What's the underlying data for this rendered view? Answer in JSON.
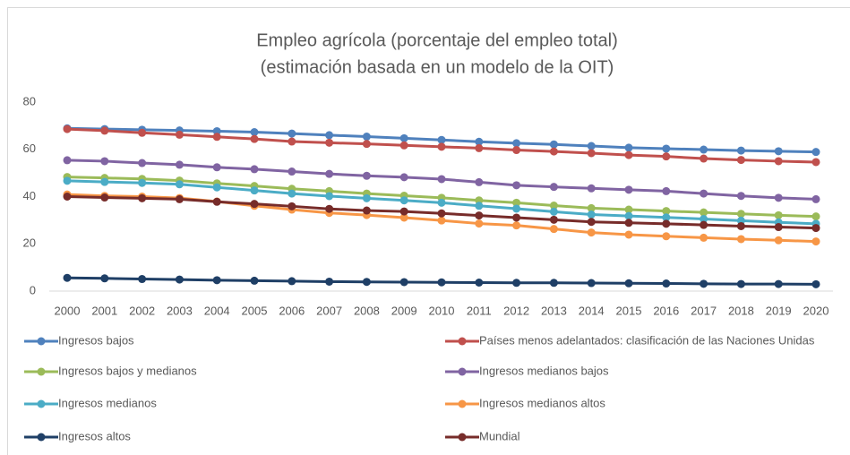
{
  "chart_data": {
    "type": "line",
    "title": "Empleo agrícola (porcentaje del empleo total)",
    "subtitle": "(estimación basada en un modelo de la OIT)",
    "categories": [
      "2000",
      "2001",
      "2002",
      "2003",
      "2004",
      "2005",
      "2006",
      "2007",
      "2008",
      "2009",
      "2010",
      "2011",
      "2012",
      "2013",
      "2014",
      "2015",
      "2016",
      "2017",
      "2018",
      "2019",
      "2020"
    ],
    "ylim": [
      0,
      80
    ],
    "yticks": [
      0,
      20,
      40,
      60,
      80
    ],
    "grid": false,
    "legend": "bottom",
    "series": [
      {
        "name": "Ingresos bajos",
        "color": "#4f81bd",
        "values": [
          68.9,
          68.6,
          68.3,
          68.0,
          67.7,
          67.3,
          66.7,
          66.0,
          65.4,
          64.7,
          64.0,
          63.2,
          62.6,
          62.1,
          61.4,
          60.7,
          60.3,
          59.9,
          59.5,
          59.2,
          58.9
        ]
      },
      {
        "name": "Países menos adelantados: clasificación de las Naciones Unidas",
        "color": "#c0504d",
        "values": [
          68.6,
          67.9,
          67.0,
          66.2,
          65.3,
          64.4,
          63.3,
          62.8,
          62.3,
          61.7,
          61.1,
          60.5,
          59.7,
          59.1,
          58.4,
          57.6,
          57.0,
          56.1,
          55.5,
          55.0,
          54.6
        ]
      },
      {
        "name": "Ingresos bajos y medianos",
        "color": "#9bbb59",
        "values": [
          48.3,
          47.9,
          47.5,
          46.8,
          45.6,
          44.5,
          43.3,
          42.3,
          41.3,
          40.4,
          39.5,
          38.4,
          37.4,
          36.2,
          35.1,
          34.5,
          33.9,
          33.3,
          32.7,
          32.1,
          31.6
        ]
      },
      {
        "name": "Ingresos medianos bajos",
        "color": "#8064a2",
        "values": [
          55.4,
          55.0,
          54.2,
          53.5,
          52.4,
          51.6,
          50.6,
          49.6,
          48.8,
          48.2,
          47.4,
          46.1,
          44.8,
          44.1,
          43.5,
          42.9,
          42.3,
          41.3,
          40.3,
          39.5,
          38.9
        ]
      },
      {
        "name": "Ingresos medianos",
        "color": "#4bacc6",
        "values": [
          46.7,
          46.2,
          45.8,
          45.2,
          43.9,
          42.6,
          41.3,
          40.2,
          39.3,
          38.4,
          37.4,
          36.1,
          34.9,
          33.6,
          32.4,
          31.8,
          31.2,
          30.5,
          29.8,
          29.1,
          28.5
        ]
      },
      {
        "name": "Ingresos medianos altos",
        "color": "#f79646",
        "values": [
          40.9,
          40.3,
          40.0,
          39.4,
          37.9,
          36.1,
          34.5,
          33.1,
          32.2,
          31.1,
          29.9,
          28.6,
          27.8,
          26.3,
          24.8,
          23.9,
          23.2,
          22.6,
          22.0,
          21.5,
          21.0
        ]
      },
      {
        "name": "Ingresos altos",
        "color": "#1f3f66",
        "values": [
          5.6,
          5.4,
          5.1,
          4.9,
          4.6,
          4.4,
          4.2,
          4.0,
          3.9,
          3.8,
          3.7,
          3.6,
          3.5,
          3.5,
          3.4,
          3.3,
          3.2,
          3.1,
          3.0,
          3.0,
          2.9
        ]
      },
      {
        "name": "Mundial",
        "color": "#772c2a",
        "values": [
          40.0,
          39.6,
          39.3,
          38.9,
          37.8,
          36.9,
          35.9,
          34.8,
          34.1,
          33.7,
          32.9,
          32.0,
          31.1,
          30.2,
          29.3,
          28.9,
          28.5,
          28.0,
          27.5,
          27.1,
          26.7
        ]
      }
    ]
  }
}
